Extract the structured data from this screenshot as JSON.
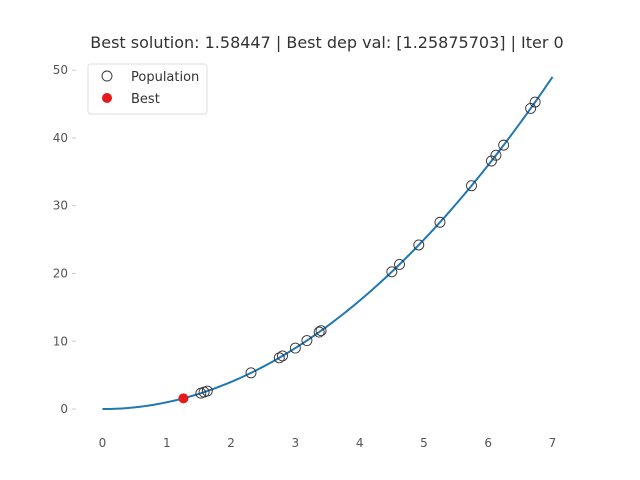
{
  "chart_data": {
    "type": "scatter",
    "title": "Best solution: 1.58447 | Best dep val: [1.25875703] | Iter 0",
    "xlabel": "",
    "ylabel": "",
    "xlim": [
      -0.35,
      7.35
    ],
    "ylim": [
      -2.5,
      51.5
    ],
    "x_ticks": [
      "0",
      "1",
      "2",
      "3",
      "4",
      "5",
      "6",
      "7"
    ],
    "y_ticks": [
      "0",
      "10",
      "20",
      "30",
      "40",
      "50"
    ],
    "grid": false,
    "legend_position": "top-left",
    "curve": {
      "name": "",
      "function": "y = x^2",
      "x_range": [
        0,
        7
      ],
      "color": "#1f77b4"
    },
    "series": [
      {
        "name": "Population",
        "style": "hollow-circle",
        "color": "#333333",
        "points": [
          {
            "x": 1.53,
            "y": 2.34
          },
          {
            "x": 1.58,
            "y": 2.5
          },
          {
            "x": 1.63,
            "y": 2.66
          },
          {
            "x": 2.31,
            "y": 5.34
          },
          {
            "x": 2.75,
            "y": 7.56
          },
          {
            "x": 2.8,
            "y": 7.84
          },
          {
            "x": 3.0,
            "y": 9.0
          },
          {
            "x": 3.18,
            "y": 10.11
          },
          {
            "x": 3.37,
            "y": 11.36
          },
          {
            "x": 3.4,
            "y": 11.56
          },
          {
            "x": 4.5,
            "y": 20.25
          },
          {
            "x": 4.62,
            "y": 21.34
          },
          {
            "x": 4.92,
            "y": 24.21
          },
          {
            "x": 5.25,
            "y": 27.56
          },
          {
            "x": 5.74,
            "y": 32.95
          },
          {
            "x": 6.05,
            "y": 36.6
          },
          {
            "x": 6.12,
            "y": 37.45
          },
          {
            "x": 6.24,
            "y": 38.94
          },
          {
            "x": 6.66,
            "y": 44.36
          },
          {
            "x": 6.73,
            "y": 45.29
          }
        ]
      },
      {
        "name": "Best",
        "style": "filled-circle",
        "color": "#e41a1c",
        "points": [
          {
            "x": 1.2588,
            "y": 1.5845
          }
        ]
      }
    ]
  }
}
